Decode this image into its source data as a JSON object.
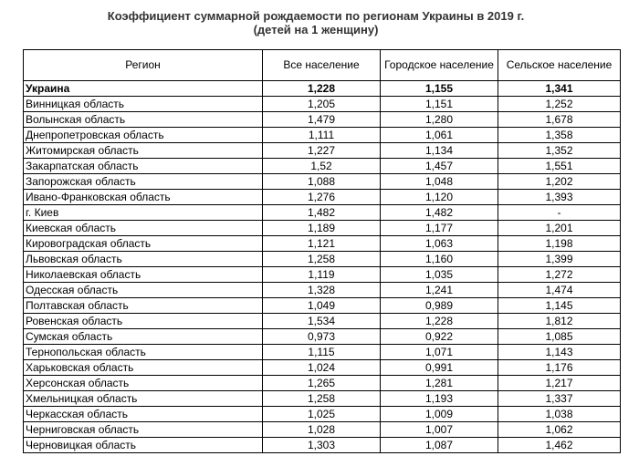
{
  "title": {
    "line1": "Коэффициент суммарной рождаемости по регионам Украины в 2019 г.",
    "line2": "(детей на 1 женщину)"
  },
  "table": {
    "headers": [
      "Регион",
      "Все население",
      "Городское население",
      "Сельское население"
    ],
    "rows": [
      [
        "Украина",
        "1,228",
        "1,155",
        "1,341"
      ],
      [
        "Винницкая область",
        "1,205",
        "1,151",
        "1,252"
      ],
      [
        "Волынская область",
        "1,479",
        "1,280",
        "1,678"
      ],
      [
        "Днепропетровская область",
        "1,111",
        "1,061",
        "1,358"
      ],
      [
        "Житомирская область",
        "1,227",
        "1,134",
        "1,352"
      ],
      [
        "Закарпатская область",
        "1,52",
        "1,457",
        "1,551"
      ],
      [
        "Запорожская область",
        "1,088",
        "1,048",
        "1,202"
      ],
      [
        "Ивано-Франковская область",
        "1,276",
        "1,120",
        "1,393"
      ],
      [
        "г. Киев",
        "1,482",
        "1,482",
        "-"
      ],
      [
        "Киевская область",
        "1,189",
        "1,177",
        "1,201"
      ],
      [
        "Кировоградская область",
        "1,121",
        "1,063",
        "1,198"
      ],
      [
        "Львовская область",
        "1,258",
        "1,160",
        "1,399"
      ],
      [
        "Николаевская область",
        "1,119",
        "1,035",
        "1,272"
      ],
      [
        "Одесская область",
        "1,328",
        "1,241",
        "1,474"
      ],
      [
        "Полтавская область",
        "1,049",
        "0,989",
        "1,145"
      ],
      [
        "Ровенская область",
        "1,534",
        "1,228",
        "1,812"
      ],
      [
        "Сумская область",
        "0,973",
        "0,922",
        "1,085"
      ],
      [
        "Тернопольская область",
        "1,115",
        "1,071",
        "1,143"
      ],
      [
        "Харьковская область",
        "1,024",
        "0,991",
        "1,176"
      ],
      [
        "Херсонская область",
        "1,265",
        "1,281",
        "1,217"
      ],
      [
        "Хмельницкая область",
        "1,258",
        "1,193",
        "1,337"
      ],
      [
        "Черкасская область",
        "1,025",
        "1,009",
        "1,038"
      ],
      [
        "Черниговская область",
        "1,028",
        "1,007",
        "1,062"
      ],
      [
        "Черновицкая область",
        "1,303",
        "1,087",
        "1,462"
      ]
    ]
  }
}
